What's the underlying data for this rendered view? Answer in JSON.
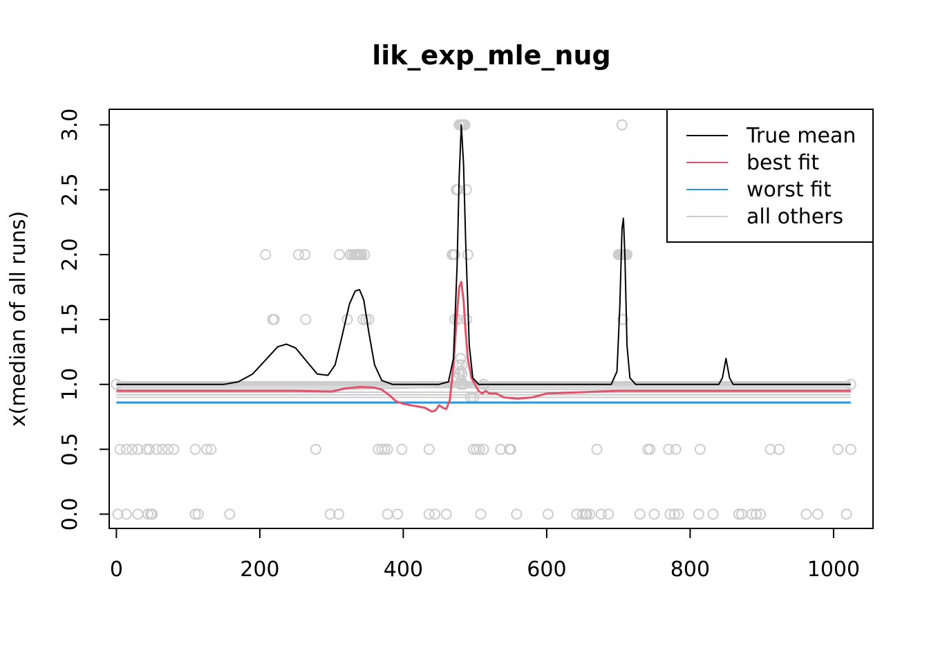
{
  "chart_data": {
    "type": "line",
    "title": "lik_exp_mle_nug",
    "xlabel": "",
    "ylabel": "x(median of all runs)",
    "xlim": [
      -10,
      1055
    ],
    "ylim": [
      -0.11,
      3.12
    ],
    "x_ticks": [
      "0",
      "200",
      "400",
      "600",
      "800",
      "1000"
    ],
    "x_tick_values": [
      0,
      200,
      400,
      600,
      800,
      1000
    ],
    "y_ticks": [
      "0.0",
      "0.5",
      "1.0",
      "1.5",
      "2.0",
      "2.5",
      "3.0"
    ],
    "y_tick_values": [
      0,
      0.5,
      1.0,
      1.5,
      2.0,
      2.5,
      3.0
    ],
    "grid": false,
    "legend_position": "top-right",
    "legend": [
      {
        "label": "True mean",
        "color": "#000000"
      },
      {
        "label": "best fit",
        "color": "#DF536B"
      },
      {
        "label": "worst fit",
        "color": "#2297E6"
      },
      {
        "label": "all others",
        "color": "#CCCCCC"
      }
    ],
    "series": [
      {
        "name": "True mean",
        "color": "#000000",
        "x": [
          0,
          150,
          170,
          190,
          210,
          225,
          237,
          250,
          265,
          280,
          295,
          305,
          315,
          325,
          333,
          339,
          345,
          352,
          360,
          370,
          385,
          400,
          450,
          463,
          470,
          475,
          478,
          481,
          484,
          487,
          492,
          497,
          505,
          520,
          600,
          690,
          698,
          702,
          705,
          707,
          709,
          712,
          716,
          724,
          800,
          840,
          845,
          849,
          850,
          851,
          855,
          860,
          1024
        ],
        "y": [
          1.0,
          1.0,
          1.02,
          1.08,
          1.2,
          1.29,
          1.31,
          1.28,
          1.18,
          1.08,
          1.07,
          1.15,
          1.38,
          1.62,
          1.72,
          1.73,
          1.65,
          1.4,
          1.15,
          1.03,
          1.0,
          1.0,
          1.0,
          1.02,
          1.2,
          1.9,
          2.6,
          3.0,
          2.7,
          2.1,
          1.3,
          1.05,
          1.0,
          1.0,
          1.0,
          1.0,
          1.1,
          1.6,
          2.2,
          2.28,
          2.0,
          1.3,
          1.05,
          1.0,
          1.0,
          1.0,
          1.05,
          1.17,
          1.2,
          1.17,
          1.05,
          1.0,
          1.0
        ]
      },
      {
        "name": "best fit",
        "color": "#DF536B",
        "x": [
          0,
          100,
          200,
          250,
          300,
          320,
          340,
          360,
          370,
          380,
          390,
          400,
          410,
          420,
          430,
          440,
          445,
          450,
          455,
          460,
          465,
          470,
          475,
          478,
          481,
          484,
          487,
          490,
          495,
          500,
          505,
          510,
          515,
          520,
          530,
          540,
          560,
          580,
          600,
          700,
          800,
          900,
          1024
        ],
        "y": [
          0.95,
          0.95,
          0.95,
          0.95,
          0.945,
          0.97,
          0.98,
          0.975,
          0.96,
          0.92,
          0.87,
          0.85,
          0.84,
          0.83,
          0.82,
          0.79,
          0.8,
          0.84,
          0.82,
          0.81,
          0.88,
          1.15,
          1.55,
          1.75,
          1.79,
          1.65,
          1.4,
          1.2,
          1.05,
          1.0,
          0.95,
          0.93,
          0.95,
          0.93,
          0.93,
          0.9,
          0.89,
          0.9,
          0.93,
          0.95,
          0.95,
          0.95,
          0.95
        ]
      },
      {
        "name": "worst fit",
        "color": "#2297E6",
        "x": [
          0,
          1024
        ],
        "y": [
          0.86,
          0.86
        ]
      },
      {
        "name": "all others",
        "color": "#CCCCCC",
        "lines": [
          {
            "x": [
              0,
              1024
            ],
            "y": [
              0.9,
              0.9
            ]
          },
          {
            "x": [
              0,
              1024
            ],
            "y": [
              0.92,
              0.92
            ]
          },
          {
            "x": [
              0,
              1024
            ],
            "y": [
              0.94,
              0.94
            ]
          },
          {
            "x": [
              0,
              300,
              470,
              478,
              481,
              484,
              490,
              520,
              1024
            ],
            "y": [
              0.96,
              0.96,
              0.98,
              1.08,
              1.16,
              1.08,
              0.98,
              0.96,
              0.96
            ]
          },
          {
            "x": [
              0,
              1024
            ],
            "y": [
              0.975,
              0.975
            ]
          },
          {
            "x": [
              0,
              1024
            ],
            "y": [
              0.99,
              0.99
            ]
          },
          {
            "x": [
              0,
              1024
            ],
            "y": [
              1.0,
              1.0
            ]
          },
          {
            "x": [
              0,
              1024
            ],
            "y": [
              1.01,
              1.01
            ]
          },
          {
            "x": [
              0,
              1024
            ],
            "y": [
              1.02,
              1.02
            ]
          }
        ],
        "points": {
          "x": [
            208,
            218,
            220,
            254,
            263,
            264,
            311,
            322,
            326,
            329,
            332,
            334,
            336,
            338,
            340,
            342,
            344,
            346,
            348,
            352,
            468,
            470,
            472,
            474,
            476,
            478,
            480,
            482,
            484,
            486,
            488,
            490,
            472,
            476,
            480,
            484,
            488,
            705,
            708,
            710,
            700,
            702,
            704,
            706,
            708,
            710,
            712,
            706,
            5,
            14,
            22,
            30,
            42,
            46,
            56,
            64,
            72,
            80,
            110,
            126,
            132,
            278,
            365,
            370,
            374,
            378,
            398,
            436,
            498,
            502,
            506,
            512,
            536,
            548,
            550,
            670,
            741,
            744,
            770,
            780,
            814,
            912,
            924,
            1006,
            1024,
            2,
            14,
            30,
            44,
            48,
            50,
            110,
            114,
            158,
            298,
            310,
            378,
            392,
            436,
            444,
            460,
            508,
            558,
            602,
            642,
            650,
            654,
            656,
            660,
            676,
            686,
            730,
            750,
            772,
            778,
            784,
            812,
            832,
            868,
            872,
            886,
            892,
            898,
            962,
            978,
            1018,
            0,
            512,
            1024,
            498,
            494,
            476,
            478,
            480,
            482,
            478,
            482,
            480
          ],
          "y": [
            2.0,
            1.5,
            1.5,
            2.0,
            2.0,
            1.5,
            2.0,
            1.5,
            2.0,
            2.0,
            2.0,
            2.0,
            2.0,
            2.0,
            2.0,
            2.0,
            1.5,
            2.0,
            1.5,
            1.5,
            2.0,
            2.0,
            2.0,
            2.5,
            2.5,
            3.0,
            3.0,
            3.0,
            3.0,
            3.0,
            2.5,
            2.0,
            1.5,
            1.5,
            1.0,
            1.0,
            1.5,
            3.0,
            2.0,
            2.0,
            2.0,
            2.0,
            2.0,
            2.0,
            2.0,
            2.0,
            2.0,
            1.5,
            0.5,
            0.5,
            0.5,
            0.5,
            0.5,
            0.5,
            0.5,
            0.5,
            0.5,
            0.5,
            0.5,
            0.5,
            0.5,
            0.5,
            0.5,
            0.5,
            0.5,
            0.5,
            0.5,
            0.5,
            0.5,
            0.5,
            0.5,
            0.5,
            0.5,
            0.5,
            0.5,
            0.5,
            0.5,
            0.5,
            0.5,
            0.5,
            0.5,
            0.5,
            0.5,
            0.5,
            0.5,
            0.0,
            0.0,
            0.0,
            0.0,
            0.0,
            0.0,
            0.0,
            0.0,
            0.0,
            0.0,
            0.0,
            0.0,
            0.0,
            0.0,
            0.0,
            0.0,
            0.0,
            0.0,
            0.0,
            0.0,
            0.0,
            0.0,
            0.0,
            0.0,
            0.0,
            0.0,
            0.0,
            0.0,
            0.0,
            0.0,
            0.0,
            0.0,
            0.0,
            0.0,
            0.0,
            0.0,
            0.0,
            0.0,
            0.0,
            0.0,
            0.0,
            1.0,
            1.0,
            1.0,
            0.9,
            0.9,
            1.05,
            1.08,
            1.1,
            1.08,
            1.15,
            1.15,
            1.2
          ]
        }
      }
    ]
  }
}
